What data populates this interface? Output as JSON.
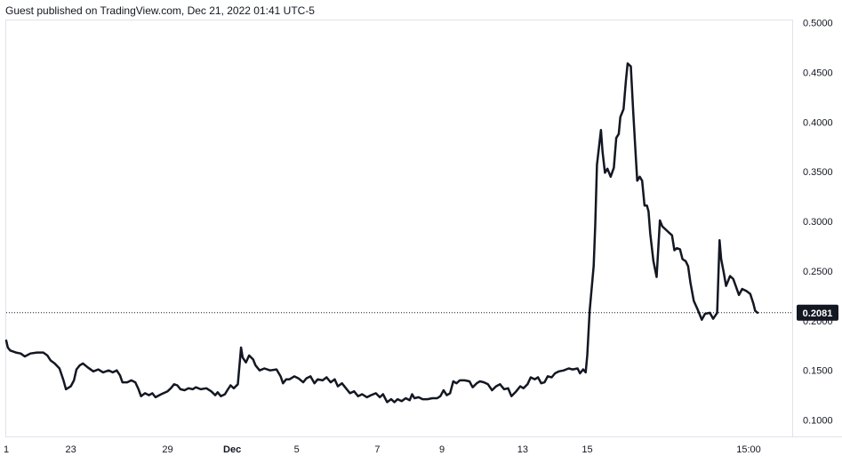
{
  "watermark": "Guest published on TradingView.com, Dec 21, 2022 01:41 UTC-5",
  "colors": {
    "line": "#131722",
    "tag_bg": "#131722",
    "tag_text": "#ffffff",
    "border": "#e0e3eb"
  },
  "chart_data": {
    "type": "line",
    "title": "",
    "xlabel": "",
    "ylabel": "",
    "ylim": [
      0.0835,
      0.5032
    ],
    "y_ticks": [
      "0.1000",
      "0.1500",
      "0.2000",
      "0.2500",
      "0.3000",
      "0.3500",
      "0.4000",
      "0.4500",
      "0.5000"
    ],
    "y_tick_values": [
      0.1,
      0.15,
      0.2,
      0.25,
      0.3,
      0.35,
      0.4,
      0.45,
      0.5
    ],
    "x_ticks": [
      {
        "label": "1",
        "i": 0,
        "bold": false
      },
      {
        "label": "23",
        "i": 4,
        "bold": false
      },
      {
        "label": "29",
        "i": 10,
        "bold": false
      },
      {
        "label": "Dec",
        "i": 14,
        "bold": true
      },
      {
        "label": "5",
        "i": 18,
        "bold": false
      },
      {
        "label": "7",
        "i": 23,
        "bold": false
      },
      {
        "label": "9",
        "i": 27,
        "bold": false
      },
      {
        "label": "13",
        "i": 32,
        "bold": false
      },
      {
        "label": "15",
        "i": 36,
        "bold": false
      },
      {
        "label": "15:00",
        "i": 46,
        "bold": false
      }
    ],
    "x_index_range": [
      0,
      48.7
    ],
    "last_price": {
      "label": "0.2081",
      "value": 0.2081
    },
    "series": [
      {
        "values": [
          [
            0.0,
            0.18
          ],
          [
            0.1,
            0.173
          ],
          [
            0.25,
            0.17
          ],
          [
            0.6,
            0.168
          ],
          [
            0.9,
            0.167
          ],
          [
            1.15,
            0.164
          ],
          [
            1.5,
            0.167
          ],
          [
            1.9,
            0.168
          ],
          [
            2.3,
            0.168
          ],
          [
            2.55,
            0.165
          ],
          [
            2.75,
            0.16
          ],
          [
            3.0,
            0.157
          ],
          [
            3.3,
            0.152
          ],
          [
            3.55,
            0.14
          ],
          [
            3.7,
            0.131
          ],
          [
            4.0,
            0.134
          ],
          [
            4.2,
            0.14
          ],
          [
            4.35,
            0.151
          ],
          [
            4.55,
            0.155
          ],
          [
            4.75,
            0.157
          ],
          [
            5.05,
            0.153
          ],
          [
            5.4,
            0.149
          ],
          [
            5.7,
            0.151
          ],
          [
            6.0,
            0.148
          ],
          [
            6.35,
            0.15
          ],
          [
            6.6,
            0.148
          ],
          [
            6.85,
            0.15
          ],
          [
            7.05,
            0.145
          ],
          [
            7.2,
            0.138
          ],
          [
            7.5,
            0.138
          ],
          [
            7.75,
            0.14
          ],
          [
            8.0,
            0.138
          ],
          [
            8.2,
            0.131
          ],
          [
            8.35,
            0.124
          ],
          [
            8.6,
            0.127
          ],
          [
            8.85,
            0.125
          ],
          [
            9.05,
            0.127
          ],
          [
            9.25,
            0.123
          ],
          [
            9.6,
            0.126
          ],
          [
            10.0,
            0.129
          ],
          [
            10.2,
            0.132
          ],
          [
            10.4,
            0.136
          ],
          [
            10.6,
            0.135
          ],
          [
            10.8,
            0.131
          ],
          [
            11.05,
            0.13
          ],
          [
            11.3,
            0.132
          ],
          [
            11.55,
            0.131
          ],
          [
            11.75,
            0.133
          ],
          [
            12.05,
            0.131
          ],
          [
            12.4,
            0.132
          ],
          [
            12.7,
            0.129
          ],
          [
            12.95,
            0.125
          ],
          [
            13.1,
            0.128
          ],
          [
            13.3,
            0.124
          ],
          [
            13.55,
            0.126
          ],
          [
            13.7,
            0.13
          ],
          [
            13.9,
            0.135
          ],
          [
            14.1,
            0.132
          ],
          [
            14.35,
            0.136
          ],
          [
            14.55,
            0.173
          ],
          [
            14.65,
            0.163
          ],
          [
            14.85,
            0.158
          ],
          [
            15.05,
            0.165
          ],
          [
            15.3,
            0.161
          ],
          [
            15.45,
            0.155
          ],
          [
            15.7,
            0.15
          ],
          [
            16.0,
            0.152
          ],
          [
            16.35,
            0.15
          ],
          [
            16.75,
            0.151
          ],
          [
            17.0,
            0.144
          ],
          [
            17.15,
            0.137
          ],
          [
            17.35,
            0.141
          ],
          [
            17.55,
            0.141
          ],
          [
            17.85,
            0.144
          ],
          [
            18.1,
            0.142
          ],
          [
            18.4,
            0.138
          ],
          [
            18.6,
            0.142
          ],
          [
            18.85,
            0.144
          ],
          [
            19.1,
            0.137
          ],
          [
            19.3,
            0.141
          ],
          [
            19.6,
            0.14
          ],
          [
            19.85,
            0.143
          ],
          [
            20.1,
            0.138
          ],
          [
            20.35,
            0.141
          ],
          [
            20.55,
            0.134
          ],
          [
            20.8,
            0.137
          ],
          [
            21.05,
            0.132
          ],
          [
            21.3,
            0.127
          ],
          [
            21.55,
            0.129
          ],
          [
            21.8,
            0.124
          ],
          [
            22.05,
            0.126
          ],
          [
            22.35,
            0.123
          ],
          [
            22.6,
            0.125
          ],
          [
            22.9,
            0.127
          ],
          [
            23.15,
            0.123
          ],
          [
            23.35,
            0.126
          ],
          [
            23.6,
            0.118
          ],
          [
            23.85,
            0.121
          ],
          [
            24.05,
            0.118
          ],
          [
            24.25,
            0.121
          ],
          [
            24.5,
            0.119
          ],
          [
            24.75,
            0.122
          ],
          [
            25.0,
            0.12
          ],
          [
            25.15,
            0.126
          ],
          [
            25.3,
            0.122
          ],
          [
            25.55,
            0.123
          ],
          [
            25.8,
            0.121
          ],
          [
            26.1,
            0.121
          ],
          [
            26.4,
            0.122
          ],
          [
            26.7,
            0.122
          ],
          [
            26.9,
            0.124
          ],
          [
            27.1,
            0.13
          ],
          [
            27.3,
            0.125
          ],
          [
            27.5,
            0.127
          ],
          [
            27.7,
            0.139
          ],
          [
            27.9,
            0.137
          ],
          [
            28.1,
            0.14
          ],
          [
            28.4,
            0.14
          ],
          [
            28.7,
            0.139
          ],
          [
            28.9,
            0.133
          ],
          [
            29.15,
            0.137
          ],
          [
            29.35,
            0.139
          ],
          [
            29.6,
            0.138
          ],
          [
            29.85,
            0.136
          ],
          [
            30.1,
            0.13
          ],
          [
            30.35,
            0.134
          ],
          [
            30.6,
            0.136
          ],
          [
            30.85,
            0.131
          ],
          [
            31.1,
            0.132
          ],
          [
            31.3,
            0.124
          ],
          [
            31.6,
            0.129
          ],
          [
            31.85,
            0.134
          ],
          [
            32.05,
            0.132
          ],
          [
            32.3,
            0.136
          ],
          [
            32.5,
            0.143
          ],
          [
            32.75,
            0.141
          ],
          [
            32.95,
            0.143
          ],
          [
            33.15,
            0.137
          ],
          [
            33.35,
            0.138
          ],
          [
            33.55,
            0.144
          ],
          [
            33.8,
            0.143
          ],
          [
            34.0,
            0.147
          ],
          [
            34.25,
            0.149
          ],
          [
            34.55,
            0.15
          ],
          [
            34.85,
            0.152
          ],
          [
            35.1,
            0.151
          ],
          [
            35.4,
            0.152
          ],
          [
            35.55,
            0.147
          ],
          [
            35.75,
            0.151
          ],
          [
            35.9,
            0.148
          ],
          [
            36.0,
            0.165
          ],
          [
            36.15,
            0.21
          ],
          [
            36.4,
            0.255
          ],
          [
            36.5,
            0.297
          ],
          [
            36.6,
            0.357
          ],
          [
            36.85,
            0.392
          ],
          [
            36.95,
            0.37
          ],
          [
            37.1,
            0.349
          ],
          [
            37.25,
            0.353
          ],
          [
            37.45,
            0.345
          ],
          [
            37.65,
            0.354
          ],
          [
            37.8,
            0.384
          ],
          [
            37.95,
            0.388
          ],
          [
            38.05,
            0.405
          ],
          [
            38.25,
            0.413
          ],
          [
            38.4,
            0.442
          ],
          [
            38.5,
            0.459
          ],
          [
            38.7,
            0.456
          ],
          [
            38.85,
            0.41
          ],
          [
            39.0,
            0.368
          ],
          [
            39.1,
            0.341
          ],
          [
            39.25,
            0.345
          ],
          [
            39.4,
            0.341
          ],
          [
            39.55,
            0.316
          ],
          [
            39.7,
            0.316
          ],
          [
            39.8,
            0.31
          ],
          [
            39.9,
            0.288
          ],
          [
            40.1,
            0.26
          ],
          [
            40.3,
            0.244
          ],
          [
            40.5,
            0.301
          ],
          [
            40.65,
            0.295
          ],
          [
            40.85,
            0.292
          ],
          [
            41.05,
            0.289
          ],
          [
            41.25,
            0.286
          ],
          [
            41.4,
            0.271
          ],
          [
            41.55,
            0.273
          ],
          [
            41.75,
            0.272
          ],
          [
            41.9,
            0.262
          ],
          [
            42.1,
            0.26
          ],
          [
            42.25,
            0.255
          ],
          [
            42.4,
            0.238
          ],
          [
            42.6,
            0.22
          ],
          [
            42.85,
            0.211
          ],
          [
            43.1,
            0.201
          ],
          [
            43.3,
            0.207
          ],
          [
            43.6,
            0.208
          ],
          [
            43.8,
            0.202
          ],
          [
            44.05,
            0.208
          ],
          [
            44.2,
            0.281
          ],
          [
            44.3,
            0.262
          ],
          [
            44.45,
            0.249
          ],
          [
            44.6,
            0.235
          ],
          [
            44.85,
            0.245
          ],
          [
            45.05,
            0.242
          ],
          [
            45.2,
            0.235
          ],
          [
            45.4,
            0.226
          ],
          [
            45.6,
            0.232
          ],
          [
            45.85,
            0.23
          ],
          [
            46.1,
            0.227
          ],
          [
            46.3,
            0.217
          ],
          [
            46.4,
            0.21
          ],
          [
            46.55,
            0.2081
          ]
        ]
      }
    ]
  }
}
